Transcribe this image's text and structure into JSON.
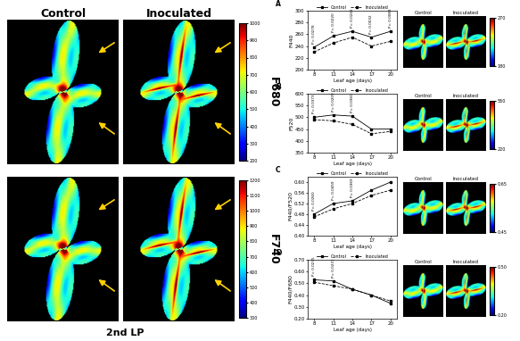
{
  "images": {
    "columns": [
      "Control",
      "Inoculated"
    ],
    "caption": "2nd LP",
    "rows": [
      {
        "label": "F680",
        "colorbar": {
          "lim": [
            200,
            1000
          ],
          "ticks": [
            200,
            300,
            400,
            500,
            600,
            700,
            800,
            900,
            1000
          ]
        }
      },
      {
        "label": "F740",
        "colorbar": {
          "lim": [
            300,
            1200
          ],
          "ticks": [
            300,
            400,
            500,
            600,
            700,
            800,
            900,
            1000,
            1100,
            1200
          ]
        }
      }
    ]
  },
  "chart_data": [
    {
      "type": "line",
      "panel": "A",
      "xlabel": "Leaf age (days)",
      "ylabel": "F440",
      "x": [
        8,
        11,
        14,
        17,
        20
      ],
      "xlim": [
        7,
        21
      ],
      "xticks": [
        8,
        11,
        14,
        17,
        20
      ],
      "ylim": [
        200,
        300
      ],
      "yticks": [
        200,
        220,
        240,
        260,
        280,
        300
      ],
      "legend": "top",
      "series": [
        {
          "name": "Control",
          "color": "#000000",
          "marker": "square",
          "line_style": "solid",
          "values": [
            238,
            257,
            265,
            255,
            265
          ]
        },
        {
          "name": "Inoculated",
          "color": "#000000",
          "marker": "square",
          "line_style": "dashed",
          "values": [
            230,
            245,
            255,
            240,
            248
          ]
        }
      ],
      "annotations": [
        {
          "x": 8,
          "text": "P= 0.0278"
        },
        {
          "x": 11,
          "text": "P= 0.0220"
        },
        {
          "x": 14,
          "text": "P= 0.0241"
        },
        {
          "x": 17,
          "text": "P= 0.0032"
        },
        {
          "x": 20,
          "text": "P= 0.0083"
        }
      ],
      "thumbnail": {
        "columns": [
          "Control",
          "Inoculated"
        ],
        "colorbar": {
          "lim": [
            180,
            270
          ],
          "ticks": [
            180,
            270
          ]
        }
      }
    },
    {
      "type": "line",
      "panel": "B",
      "xlabel": "Leaf age (days)",
      "ylabel": "F520",
      "x": [
        8,
        11,
        14,
        17,
        20
      ],
      "xlim": [
        7,
        21
      ],
      "xticks": [
        8,
        11,
        14,
        17,
        20
      ],
      "ylim": [
        350,
        600
      ],
      "yticks": [
        350,
        400,
        450,
        500,
        550,
        600
      ],
      "legend": "top",
      "series": [
        {
          "name": "Control",
          "color": "#000000",
          "marker": "square",
          "line_style": "solid",
          "values": [
            500,
            510,
            505,
            450,
            450
          ]
        },
        {
          "name": "Inoculated",
          "color": "#000000",
          "marker": "square",
          "line_style": "dashed",
          "values": [
            490,
            485,
            470,
            430,
            440
          ]
        }
      ],
      "annotations": [
        {
          "x": 8,
          "text": "P= 0.0373"
        },
        {
          "x": 11,
          "text": "P= 0.0209"
        },
        {
          "x": 14,
          "text": "P= 0.0360"
        }
      ],
      "thumbnail": {
        "columns": [
          "Control",
          "Inoculated"
        ],
        "colorbar": {
          "lim": [
            220,
            550
          ],
          "ticks": [
            220,
            550
          ]
        }
      }
    },
    {
      "type": "line",
      "panel": "C",
      "xlabel": "Leaf age (days)",
      "ylabel": "F440/F520",
      "x": [
        8,
        11,
        14,
        17,
        20
      ],
      "xlim": [
        7,
        21
      ],
      "xticks": [
        8,
        11,
        14,
        17,
        20
      ],
      "ylim": [
        0.4,
        0.62
      ],
      "yticks": [
        {
          "value": 0.4,
          "label": "0.40"
        },
        {
          "value": 0.44,
          "label": "0.44"
        },
        {
          "value": 0.48,
          "label": "0.48"
        },
        {
          "value": 0.52,
          "label": "0.52"
        },
        {
          "value": 0.56,
          "label": "0.56"
        },
        {
          "value": 0.6,
          "label": "0.60"
        }
      ],
      "legend": "top",
      "series": [
        {
          "name": "Control",
          "color": "#000000",
          "marker": "square",
          "line_style": "solid",
          "values": [
            0.48,
            0.52,
            0.53,
            0.57,
            0.6
          ]
        },
        {
          "name": "Inoculated",
          "color": "#000000",
          "marker": "square",
          "line_style": "dashed",
          "values": [
            0.47,
            0.5,
            0.52,
            0.55,
            0.57
          ]
        }
      ],
      "annotations": [
        {
          "x": 8,
          "text": "P= 0.0260"
        },
        {
          "x": 11,
          "text": "P= 0.0459"
        },
        {
          "x": 14,
          "text": "P= 0.0369"
        }
      ],
      "thumbnail": {
        "columns": [
          "Control",
          "Inoculated"
        ],
        "colorbar": {
          "lim": [
            0.45,
            0.65
          ],
          "ticks": [
            {
              "value": 0.45,
              "label": "0.45"
            },
            {
              "value": 0.65,
              "label": "0.65"
            }
          ]
        }
      }
    },
    {
      "type": "line",
      "panel": "D",
      "xlabel": "Leaf age (days)",
      "ylabel": "F440/F680",
      "x": [
        8,
        11,
        14,
        17,
        20
      ],
      "xlim": [
        7,
        21
      ],
      "xticks": [
        8,
        11,
        14,
        17,
        20
      ],
      "ylim": [
        0.2,
        0.7
      ],
      "yticks": [
        {
          "value": 0.2,
          "label": "0.20"
        },
        {
          "value": 0.3,
          "label": "0.30"
        },
        {
          "value": 0.4,
          "label": "0.40"
        },
        {
          "value": 0.5,
          "label": "0.50"
        },
        {
          "value": 0.6,
          "label": "0.60"
        },
        {
          "value": 0.7,
          "label": "0.70"
        }
      ],
      "legend": "top",
      "series": [
        {
          "name": "Control",
          "color": "#000000",
          "marker": "square",
          "line_style": "solid",
          "values": [
            0.53,
            0.52,
            0.45,
            0.4,
            0.33
          ]
        },
        {
          "name": "Inoculated",
          "color": "#000000",
          "marker": "square",
          "line_style": "dashed",
          "values": [
            0.51,
            0.48,
            0.45,
            0.4,
            0.35
          ]
        }
      ],
      "annotations": [
        {
          "x": 8,
          "text": "P= 0.0275"
        },
        {
          "x": 11,
          "text": "P= 0.0231"
        }
      ],
      "thumbnail": {
        "columns": [
          "Control",
          "Inoculated"
        ],
        "colorbar": {
          "lim": [
            0.2,
            0.5
          ],
          "ticks": [
            {
              "value": 0.2,
              "label": "0.20"
            },
            {
              "value": 0.5,
              "label": "0.50"
            }
          ]
        }
      }
    }
  ]
}
